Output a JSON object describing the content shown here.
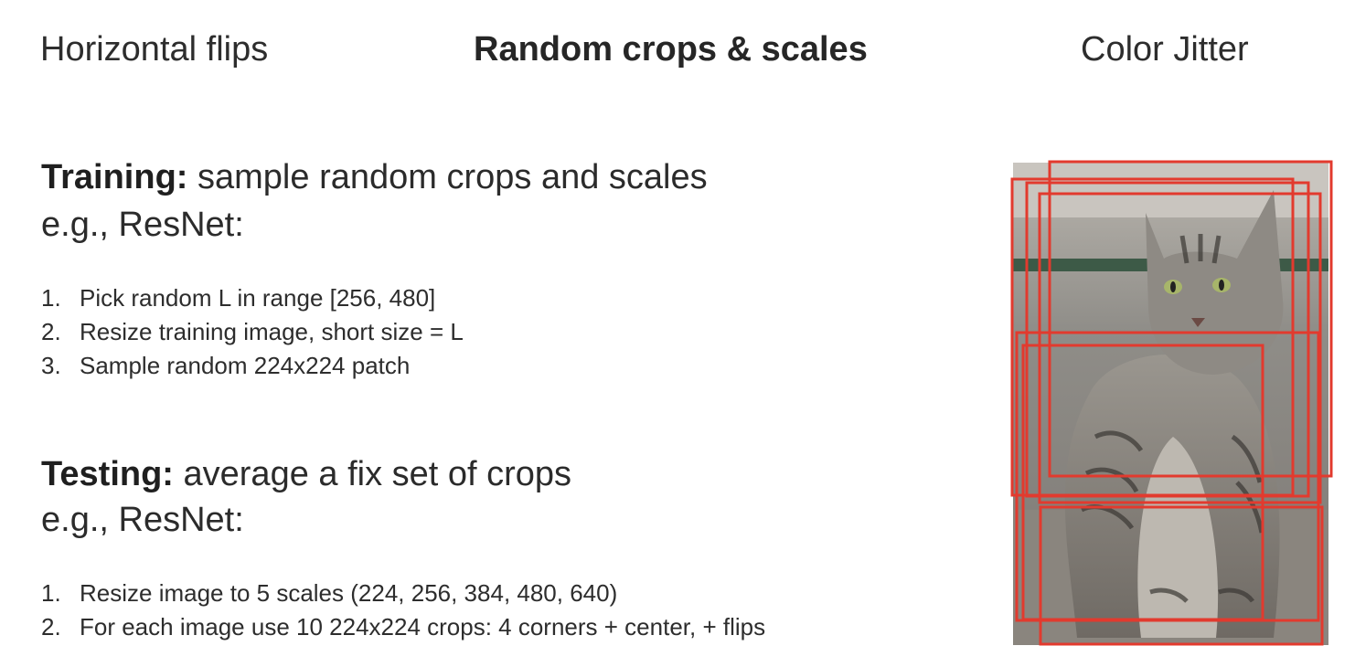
{
  "tabs": {
    "left": "Horizontal flips",
    "center": "Random crops & scales",
    "right": "Color Jitter"
  },
  "training": {
    "heading_bold": "Training:",
    "heading_rest": " sample random crops and scales",
    "subheading": "e.g., ResNet:",
    "steps": [
      {
        "num": "1.",
        "text": "Pick random L in range [256, 480]"
      },
      {
        "num": "2.",
        "text": "Resize training image, short size = L"
      },
      {
        "num": "3.",
        "text": "Sample random 224x224 patch"
      }
    ]
  },
  "testing": {
    "heading_bold": "Testing:",
    "heading_rest": " average a fix set of crops",
    "subheading": "e.g., ResNet:",
    "steps": [
      {
        "num": "1.",
        "text": "Resize image to 5 scales (224, 256, 384, 480, 640)"
      },
      {
        "num": "2.",
        "text": "For each image use 10 224x224 crops: 4 corners + center, + flips"
      }
    ]
  },
  "image": {
    "subject": "tabby cat photo",
    "crop_box_color": "#e23a2e"
  }
}
